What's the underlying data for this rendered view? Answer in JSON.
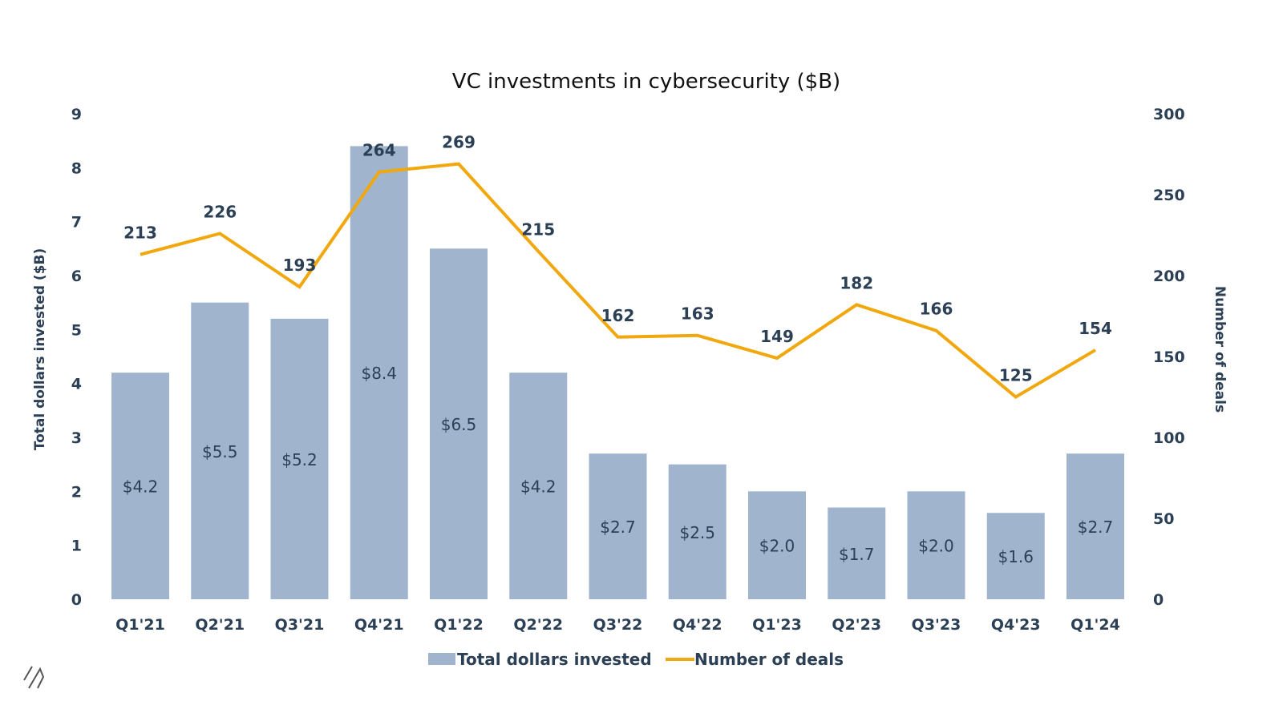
{
  "chart_data": {
    "type": "bar+line",
    "title": "VC investments in cybersecurity ($B)",
    "categories": [
      "Q1'21",
      "Q2'21",
      "Q3'21",
      "Q4'21",
      "Q1'22",
      "Q2'22",
      "Q3'22",
      "Q4'22",
      "Q1'23",
      "Q2'23",
      "Q3'23",
      "Q4'23",
      "Q1'24"
    ],
    "series": [
      {
        "name": "Total dollars invested",
        "type": "bar",
        "axis": "left",
        "values": [
          4.2,
          5.5,
          5.2,
          8.4,
          6.5,
          4.2,
          2.7,
          2.5,
          2.0,
          1.7,
          2.0,
          1.6,
          2.7
        ],
        "labels": [
          "$4.2",
          "$5.5",
          "$5.2",
          "$8.4",
          "$6.5",
          "$4.2",
          "$2.7",
          "$2.5",
          "$2.0",
          "$1.7",
          "$2.0",
          "$1.6",
          "$2.7"
        ],
        "color": "#a0b5cd"
      },
      {
        "name": "Number of deals",
        "type": "line",
        "axis": "right",
        "values": [
          213,
          226,
          193,
          264,
          269,
          215,
          162,
          163,
          149,
          182,
          166,
          125,
          154
        ],
        "color": "#f0a80e"
      }
    ],
    "ylabel_left": "Total dollars invested ($B)",
    "ylabel_right": "Number of deals",
    "ylim_left": [
      0,
      9
    ],
    "yticks_left": [
      "0",
      "1",
      "2",
      "3",
      "4",
      "5",
      "6",
      "7",
      "8",
      "9"
    ],
    "ylim_right": [
      0,
      300
    ],
    "yticks_right": [
      "0",
      "50",
      "100",
      "150",
      "200",
      "250",
      "300"
    ],
    "grid": false,
    "legend": "bottom",
    "text_color": "#2b3f55"
  }
}
